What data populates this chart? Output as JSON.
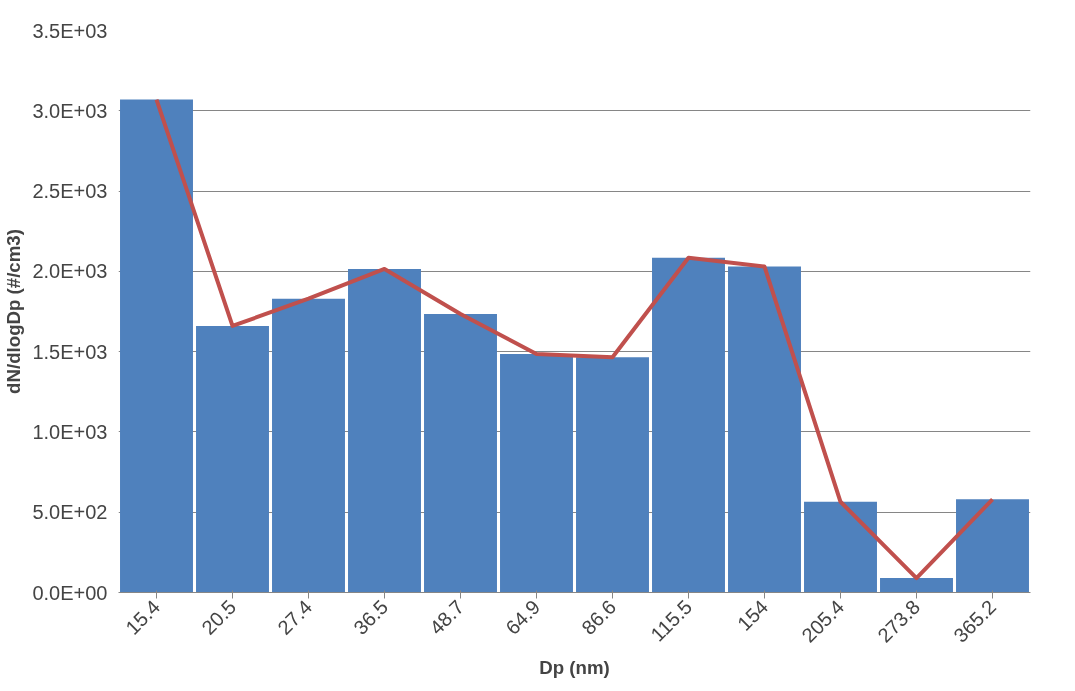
{
  "chart_data": {
    "type": "bar",
    "xlabel": "Dp (nm)",
    "ylabel": "dN/dlogDp (#/cm3)",
    "categories": [
      "15.4",
      "20.5",
      "27.4",
      "36.5",
      "48.7",
      "64.9",
      "86.6",
      "115.5",
      "154",
      "205.4",
      "273.8",
      "365.2"
    ],
    "series": [
      {
        "color": "#4f81bd",
        "values": [
          3070,
          1660,
          1830,
          2015,
          1735,
          1485,
          1465,
          2085,
          2030,
          565,
          90,
          580
        ]
      },
      {
        "type": "line",
        "color": "#c0504d",
        "values": [
          3070,
          1660,
          1830,
          2015,
          1735,
          1485,
          1465,
          2085,
          2030,
          565,
          90,
          580
        ]
      }
    ],
    "ylim": [
      0,
      3500
    ],
    "yticks": [
      {
        "value": 0,
        "label": "0.0E+00"
      },
      {
        "value": 500,
        "label": "5.0E+02"
      },
      {
        "value": 1000,
        "label": "1.0E+03"
      },
      {
        "value": 1500,
        "label": "1.5E+03"
      },
      {
        "value": 2000,
        "label": "2.0E+03"
      },
      {
        "value": 2500,
        "label": "2.5E+03"
      },
      {
        "value": 3000,
        "label": "3.0E+03"
      },
      {
        "value": 3500,
        "label": "3.5E+03"
      }
    ],
    "grid": "y",
    "marker": "none",
    "line_style": "solid"
  }
}
